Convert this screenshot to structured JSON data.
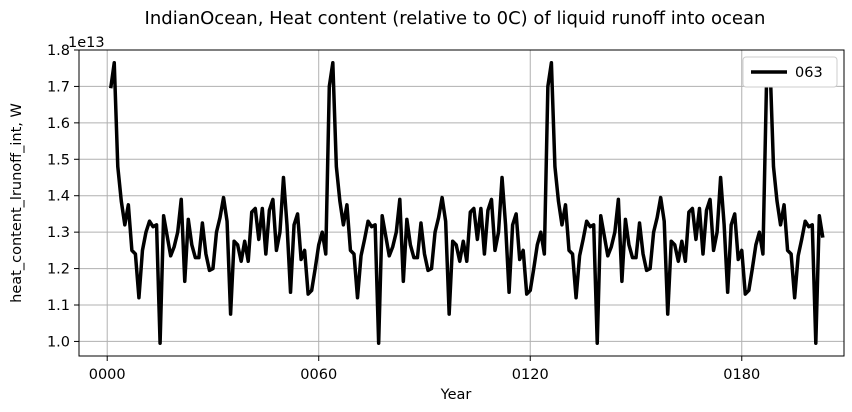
{
  "chart_data": {
    "type": "line",
    "title": "IndianOcean, Heat content (relative to 0C) of liquid runoff into ocean",
    "xlabel": "Year",
    "ylabel": "heat_content_lrunoff_int, W",
    "y_multiplier_label": "1e13",
    "xlim": [
      -8,
      209
    ],
    "ylim": [
      0.96,
      1.8
    ],
    "x_ticks": [
      0,
      60,
      120,
      180
    ],
    "x_tick_labels": [
      "0000",
      "0060",
      "0120",
      "0180"
    ],
    "y_ticks": [
      1.0,
      1.1,
      1.2,
      1.3,
      1.4,
      1.5,
      1.6,
      1.7,
      1.8
    ],
    "y_tick_labels": [
      "1.0",
      "1.1",
      "1.2",
      "1.3",
      "1.4",
      "1.5",
      "1.6",
      "1.7",
      "1.8"
    ],
    "grid": true,
    "legend_position": "top-right",
    "line_color": "#000000",
    "series": [
      {
        "name": "063",
        "values": [
          1.695,
          1.765,
          1.48,
          1.385,
          1.32,
          1.375,
          1.25,
          1.24,
          1.12,
          1.25,
          1.3,
          1.33,
          1.315,
          1.32,
          0.995,
          1.345,
          1.29,
          1.235,
          1.26,
          1.3,
          1.39,
          1.165,
          1.335,
          1.265,
          1.23,
          1.23,
          1.325,
          1.24,
          1.195,
          1.2,
          1.3,
          1.34,
          1.395,
          1.33,
          1.075,
          1.275,
          1.265,
          1.22,
          1.275,
          1.22,
          1.355,
          1.365,
          1.28,
          1.365,
          1.24,
          1.36,
          1.39,
          1.25,
          1.3,
          1.45,
          1.32,
          1.135,
          1.32,
          1.35,
          1.225,
          1.25,
          1.13,
          1.14,
          1.2,
          1.265,
          1.3,
          1.24,
          1.7,
          1.765,
          1.48,
          1.385,
          1.32,
          1.375,
          1.25,
          1.24,
          1.12,
          1.235,
          1.28,
          1.33,
          1.315,
          1.32,
          0.995,
          1.345,
          1.29,
          1.235,
          1.26,
          1.3,
          1.39,
          1.165,
          1.335,
          1.265,
          1.23,
          1.23,
          1.325,
          1.24,
          1.195,
          1.2,
          1.3,
          1.34,
          1.395,
          1.33,
          1.075,
          1.275,
          1.265,
          1.22,
          1.275,
          1.22,
          1.355,
          1.365,
          1.28,
          1.365,
          1.24,
          1.36,
          1.39,
          1.25,
          1.3,
          1.45,
          1.32,
          1.135,
          1.32,
          1.35,
          1.225,
          1.25,
          1.13,
          1.14,
          1.2,
          1.265,
          1.3,
          1.24,
          1.7,
          1.765,
          1.48,
          1.385,
          1.32,
          1.375,
          1.25,
          1.24,
          1.12,
          1.235,
          1.28,
          1.33,
          1.315,
          1.32,
          0.995,
          1.345,
          1.29,
          1.235,
          1.26,
          1.3,
          1.39,
          1.165,
          1.335,
          1.265,
          1.23,
          1.23,
          1.325,
          1.24,
          1.195,
          1.2,
          1.3,
          1.34,
          1.395,
          1.33,
          1.075,
          1.275,
          1.265,
          1.22,
          1.275,
          1.22,
          1.355,
          1.365,
          1.28,
          1.365,
          1.24,
          1.36,
          1.39,
          1.25,
          1.3,
          1.45,
          1.32,
          1.135,
          1.32,
          1.35,
          1.225,
          1.25,
          1.13,
          1.14,
          1.2,
          1.265,
          1.3,
          1.24,
          1.7,
          1.765,
          1.48,
          1.385,
          1.32,
          1.375,
          1.25,
          1.24,
          1.12,
          1.235,
          1.28,
          1.33,
          1.315,
          1.32,
          0.995,
          1.345,
          1.285
        ]
      }
    ]
  }
}
